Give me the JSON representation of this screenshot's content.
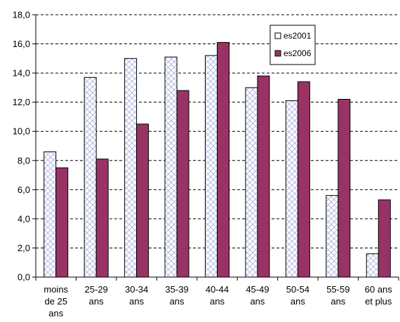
{
  "chart_data": {
    "type": "bar",
    "title": "",
    "xlabel": "",
    "ylabel": "",
    "ylim": [
      0,
      18
    ],
    "ytick_step": 2,
    "ytick_labels": [
      "0,0",
      "2,0",
      "4,0",
      "6,0",
      "8,0",
      "10,0",
      "12,0",
      "14,0",
      "16,0",
      "18,0"
    ],
    "grid": "horizontal dashed",
    "legend_position": "top-right",
    "categories": [
      [
        "moins",
        "de 25",
        "ans"
      ],
      [
        "25-29",
        "ans"
      ],
      [
        "30-34",
        "ans"
      ],
      [
        "35-39",
        "ans"
      ],
      [
        "40-44",
        "ans"
      ],
      [
        "45-49",
        "ans"
      ],
      [
        "50-54",
        "ans"
      ],
      [
        "55-59",
        "ans"
      ],
      [
        "60 ans",
        "et plus"
      ]
    ],
    "series": [
      {
        "name": "es2001",
        "color": "#c8cce8",
        "pattern": "diagonal-crosshatch",
        "values": [
          8.6,
          13.7,
          15.0,
          15.1,
          15.2,
          13.0,
          12.1,
          5.6,
          1.6
        ]
      },
      {
        "name": "es2006",
        "color": "#993366",
        "pattern": "solid",
        "values": [
          7.5,
          8.1,
          10.5,
          12.8,
          16.1,
          13.8,
          13.4,
          12.2,
          5.3
        ]
      }
    ]
  }
}
